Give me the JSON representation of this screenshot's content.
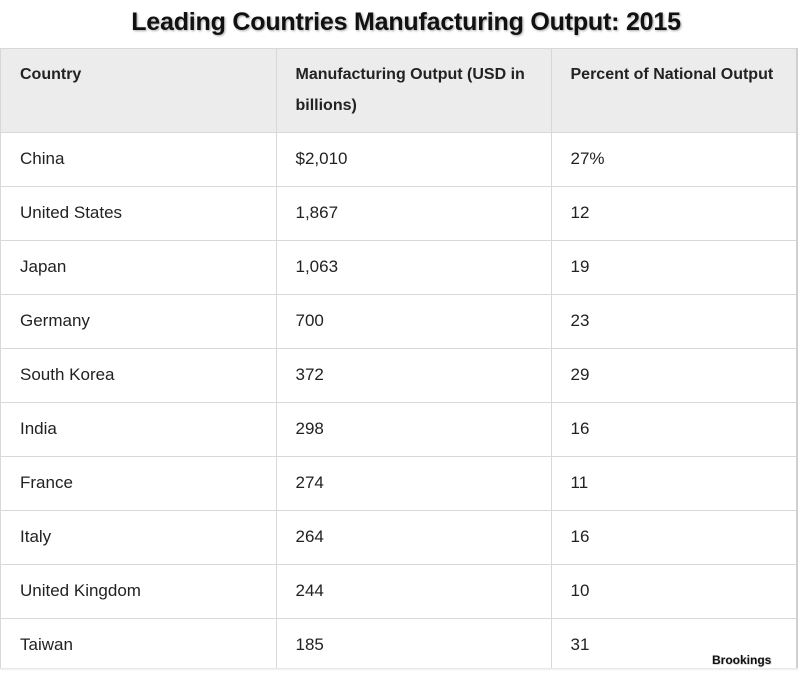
{
  "title": "Leading Countries Manufacturing Output: 2015",
  "source": "Brookings",
  "chart_data": {
    "type": "table",
    "title": "Leading Countries Manufacturing Output: 2015",
    "columns": [
      "Country",
      "Manufacturing Output (USD in billions)",
      "Percent of National Output"
    ],
    "rows": [
      [
        "China",
        "$2,010",
        "27%"
      ],
      [
        "United States",
        "1,867",
        "12"
      ],
      [
        "Japan",
        "1,063",
        "19"
      ],
      [
        "Germany",
        "700",
        "23"
      ],
      [
        "South Korea",
        "372",
        "29"
      ],
      [
        "India",
        "298",
        "16"
      ],
      [
        "France",
        "274",
        "11"
      ],
      [
        "Italy",
        "264",
        "16"
      ],
      [
        "United Kingdom",
        "244",
        "10"
      ],
      [
        "Taiwan",
        "185",
        "31"
      ]
    ]
  }
}
